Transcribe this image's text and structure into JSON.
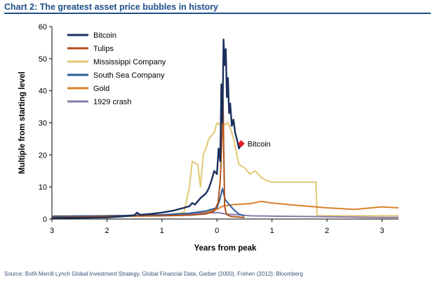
{
  "title": "Chart 2: The greatest asset price bubbles in history",
  "source": "Source:  BofA Merrill Lynch Global Investment Strategy, Global Financial Data, Garber (2000), Frehen (2012);  Bloomberg",
  "colors": {
    "title_blue": "#1e4f8a",
    "bitcoin": "#1a2f5c",
    "tulips": "#b0531a",
    "mississippi": "#e2c872",
    "south_sea": "#2e5a9c",
    "gold": "#d9822b",
    "crash_1929": "#8a7aa8",
    "marker": "#e8202a"
  },
  "chart_data": {
    "type": "line",
    "xlabel": "Years from peak",
    "ylabel": "Multiple from starting level",
    "xlim": [
      -3,
      3.3
    ],
    "ylim": [
      0,
      60
    ],
    "x_ticks": [
      -3,
      -2,
      -1,
      0,
      1,
      2,
      3
    ],
    "x_tick_labels": [
      "3",
      "2",
      "1",
      "0",
      "1",
      "2",
      "3"
    ],
    "y_ticks": [
      0,
      10,
      20,
      30,
      40,
      50,
      60
    ],
    "y_tick_labels": [
      "0",
      "10",
      "20",
      "30",
      "40",
      "50",
      "60"
    ],
    "grid": false,
    "legend_position": "top-left",
    "annotation": {
      "text": "Bitcoin",
      "x": 0.44,
      "y": 23.5
    },
    "series": [
      {
        "name": "Bitcoin",
        "color": "#1a2f5c",
        "points": [
          [
            -3.0,
            0.3
          ],
          [
            -2.5,
            0.4
          ],
          [
            -2.0,
            0.5
          ],
          [
            -1.7,
            0.8
          ],
          [
            -1.5,
            1.2
          ],
          [
            -1.45,
            2.0
          ],
          [
            -1.4,
            1.3
          ],
          [
            -1.2,
            1.6
          ],
          [
            -1.0,
            2.0
          ],
          [
            -0.8,
            2.6
          ],
          [
            -0.6,
            3.5
          ],
          [
            -0.5,
            4.0
          ],
          [
            -0.45,
            5.0
          ],
          [
            -0.4,
            4.5
          ],
          [
            -0.3,
            6.5
          ],
          [
            -0.2,
            8.0
          ],
          [
            -0.15,
            9.5
          ],
          [
            -0.1,
            12.0
          ],
          [
            -0.05,
            15.0
          ],
          [
            0.0,
            14.0
          ],
          [
            0.03,
            22.0
          ],
          [
            0.06,
            18.0
          ],
          [
            0.08,
            42.0
          ],
          [
            0.1,
            30.0
          ],
          [
            0.12,
            56.0
          ],
          [
            0.14,
            48.0
          ],
          [
            0.16,
            53.0
          ],
          [
            0.18,
            38.0
          ],
          [
            0.2,
            44.0
          ],
          [
            0.22,
            33.0
          ],
          [
            0.24,
            36.0
          ],
          [
            0.27,
            29.0
          ],
          [
            0.3,
            31.0
          ],
          [
            0.33,
            27.0
          ],
          [
            0.36,
            25.0
          ],
          [
            0.4,
            22.0
          ],
          [
            0.44,
            23.5
          ]
        ]
      },
      {
        "name": "Tulips",
        "color": "#b0531a",
        "points": [
          [
            -3.0,
            0.5
          ],
          [
            -2.0,
            0.8
          ],
          [
            -1.0,
            1.0
          ],
          [
            -0.5,
            1.2
          ],
          [
            -0.2,
            1.6
          ],
          [
            -0.05,
            2.5
          ],
          [
            0.02,
            5.0
          ],
          [
            0.06,
            12.0
          ],
          [
            0.09,
            25.0
          ],
          [
            0.11,
            37.5
          ],
          [
            0.125,
            20.0
          ],
          [
            0.14,
            4.0
          ],
          [
            0.17,
            1.5
          ],
          [
            0.25,
            0.8
          ],
          [
            0.5,
            0.5
          ]
        ]
      },
      {
        "name": "Mississippi Company",
        "color": "#e2c872",
        "points": [
          [
            -3.0,
            1.0
          ],
          [
            -2.0,
            1.0
          ],
          [
            -1.0,
            1.2
          ],
          [
            -0.6,
            2.0
          ],
          [
            -0.5,
            10.0
          ],
          [
            -0.45,
            18.0
          ],
          [
            -0.35,
            17.0
          ],
          [
            -0.3,
            10.0
          ],
          [
            -0.25,
            20.0
          ],
          [
            -0.2,
            22.0
          ],
          [
            -0.15,
            25.0
          ],
          [
            -0.05,
            27.0
          ],
          [
            0.0,
            30.0
          ],
          [
            0.1,
            29.0
          ],
          [
            0.2,
            30.0
          ],
          [
            0.25,
            28.0
          ],
          [
            0.3,
            25.0
          ],
          [
            0.35,
            21.0
          ],
          [
            0.4,
            17.0
          ],
          [
            0.5,
            16.0
          ],
          [
            0.6,
            14.0
          ],
          [
            0.7,
            15.0
          ],
          [
            0.8,
            13.0
          ],
          [
            0.9,
            12.0
          ],
          [
            1.0,
            11.5
          ],
          [
            1.8,
            11.5
          ],
          [
            1.82,
            1.0
          ],
          [
            3.3,
            1.0
          ]
        ]
      },
      {
        "name": "South Sea Company",
        "color": "#2e5a9c",
        "points": [
          [
            -3.0,
            0.8
          ],
          [
            -2.0,
            1.0
          ],
          [
            -1.0,
            1.3
          ],
          [
            -0.5,
            1.8
          ],
          [
            -0.2,
            2.5
          ],
          [
            0.0,
            3.5
          ],
          [
            0.05,
            6.0
          ],
          [
            0.1,
            9.5
          ],
          [
            0.15,
            6.0
          ],
          [
            0.2,
            5.0
          ],
          [
            0.3,
            3.0
          ],
          [
            0.4,
            1.5
          ],
          [
            0.5,
            1.0
          ]
        ]
      },
      {
        "name": "Gold",
        "color": "#d9822b",
        "points": [
          [
            -3.0,
            0.8
          ],
          [
            -2.0,
            1.0
          ],
          [
            -1.0,
            1.2
          ],
          [
            -0.5,
            1.6
          ],
          [
            -0.2,
            2.0
          ],
          [
            0.0,
            3.0
          ],
          [
            0.1,
            4.0
          ],
          [
            0.3,
            4.5
          ],
          [
            0.6,
            4.8
          ],
          [
            0.8,
            5.5
          ],
          [
            1.0,
            5.0
          ],
          [
            1.5,
            4.2
          ],
          [
            2.0,
            3.5
          ],
          [
            2.5,
            3.0
          ],
          [
            3.0,
            3.8
          ],
          [
            3.3,
            3.5
          ]
        ]
      },
      {
        "name": "1929 crash",
        "color": "#8a7aa8",
        "points": [
          [
            -3.0,
            0.8
          ],
          [
            -2.0,
            1.0
          ],
          [
            -1.0,
            1.2
          ],
          [
            -0.5,
            1.6
          ],
          [
            0.0,
            2.0
          ],
          [
            0.2,
            1.5
          ],
          [
            0.4,
            1.3
          ],
          [
            0.6,
            1.0
          ],
          [
            1.0,
            0.9
          ],
          [
            1.5,
            0.8
          ],
          [
            2.0,
            0.7
          ],
          [
            2.5,
            0.6
          ],
          [
            3.0,
            0.5
          ],
          [
            3.3,
            0.5
          ]
        ]
      }
    ]
  }
}
